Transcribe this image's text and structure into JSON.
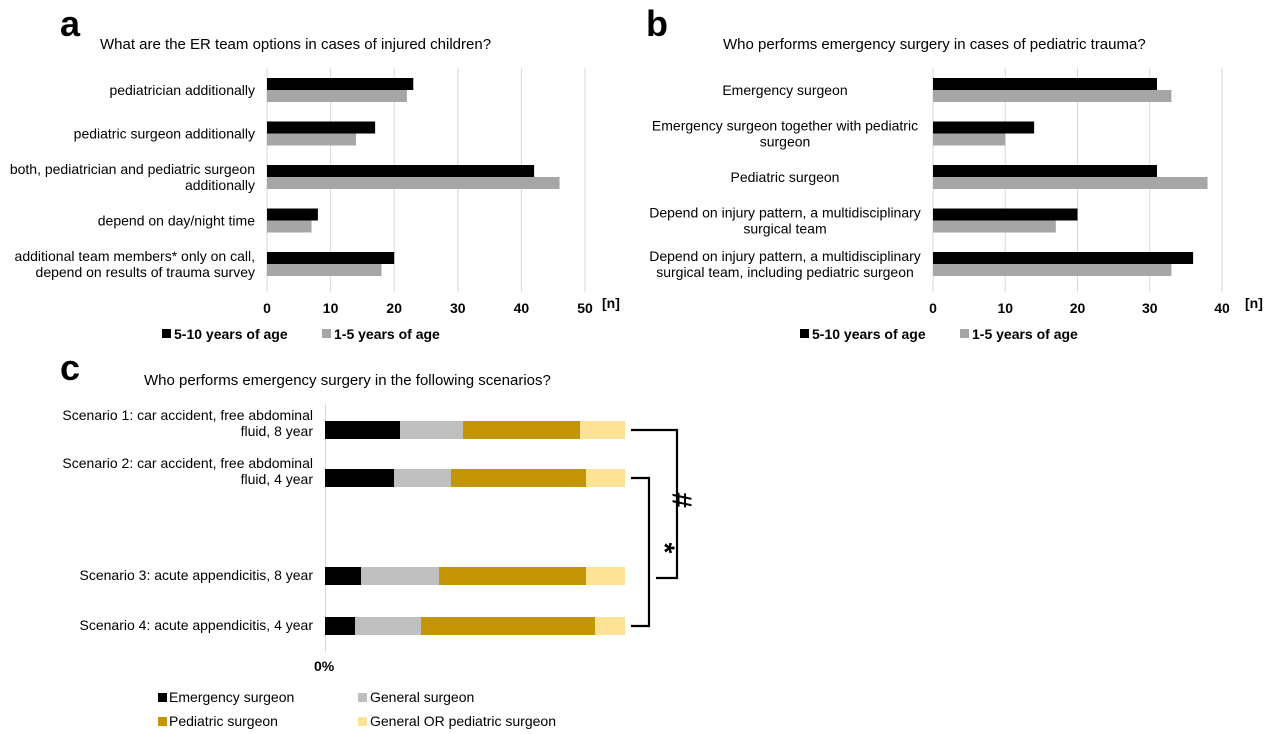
{
  "colors": {
    "emergency": "#000000",
    "general": "#bfbfbf",
    "pediatric": "#c49504",
    "general_or_pediatric": "#fde396",
    "age_5_10": "#000000",
    "age_1_5": "#a6a6a6",
    "grid": "#d9d9d9"
  },
  "chart_data": [
    {
      "id": "a",
      "letter": "a",
      "type": "bar",
      "orientation": "horizontal",
      "title": "What are the ER team options in cases of injured children?",
      "categories": [
        [
          "pediatrician additionally"
        ],
        [
          "pediatric surgeon additionally"
        ],
        [
          "both, pediatrician and pediatric surgeon",
          "additionally"
        ],
        [
          "depend on day/night time"
        ],
        [
          "additional team members* only on call,",
          "depend on results of trauma survey"
        ]
      ],
      "series": [
        {
          "name": "5-10 years of age",
          "values": [
            23,
            17,
            42,
            8,
            20
          ]
        },
        {
          "name": "1-5 years of age",
          "values": [
            22,
            14,
            46,
            7,
            18
          ]
        }
      ],
      "xlim": [
        0,
        50
      ],
      "xticks": [
        "0",
        "10",
        "20",
        "30",
        "40",
        "50"
      ],
      "xunit": "[n]",
      "grid": true,
      "legend": "bottom"
    },
    {
      "id": "b",
      "letter": "b",
      "type": "bar",
      "orientation": "horizontal",
      "title": "Who performs emergency surgery in cases of pediatric trauma?",
      "categories": [
        [
          "Emergency surgeon"
        ],
        [
          "Emergency surgeon together with pediatric",
          "surgeon"
        ],
        [
          "Pediatric surgeon"
        ],
        [
          "Depend on injury pattern, a multidisciplinary",
          "surgical team"
        ],
        [
          "Depend on injury pattern, a multidisciplinary",
          "surgical team, including pediatric surgeon"
        ]
      ],
      "series": [
        {
          "name": "5-10 years of age",
          "values": [
            31,
            14,
            31,
            20,
            36
          ]
        },
        {
          "name": "1-5 years of age",
          "values": [
            33,
            10,
            38,
            17,
            33
          ]
        }
      ],
      "xlim": [
        0,
        40
      ],
      "xticks": [
        "0",
        "10",
        "20",
        "30",
        "40"
      ],
      "xunit": "[n]",
      "grid": true,
      "legend": "bottom"
    },
    {
      "id": "c",
      "letter": "c",
      "type": "bar",
      "orientation": "horizontal",
      "stacked": "percent",
      "title": "Who performs emergency surgery in the following scenarios?",
      "categories": [
        [
          "Scenario 1: car accident, free abdominal",
          "fluid, 8 year"
        ],
        [
          "Scenario 2: car accident, free abdominal",
          "fluid, 4 year"
        ],
        [
          "Scenario 3: acute appendicitis, 8 year"
        ],
        [
          "Scenario 4: acute appendicitis, 4 year"
        ]
      ],
      "series": [
        {
          "name": "Emergency surgeon",
          "values": [
            25,
            23,
            12,
            10
          ]
        },
        {
          "name": "General surgeon",
          "values": [
            21,
            19,
            26,
            22
          ]
        },
        {
          "name": "Pediatric surgeon",
          "values": [
            39,
            45,
            49,
            58
          ]
        },
        {
          "name": "General OR pediatric surgeon",
          "values": [
            15,
            13,
            13,
            10
          ]
        }
      ],
      "xticks": [
        "0%"
      ],
      "legend": "bottom",
      "annotations": [
        {
          "symbol": "#",
          "between": [
            1,
            3
          ]
        },
        {
          "symbol": "*",
          "between": [
            2,
            4
          ]
        }
      ]
    }
  ]
}
